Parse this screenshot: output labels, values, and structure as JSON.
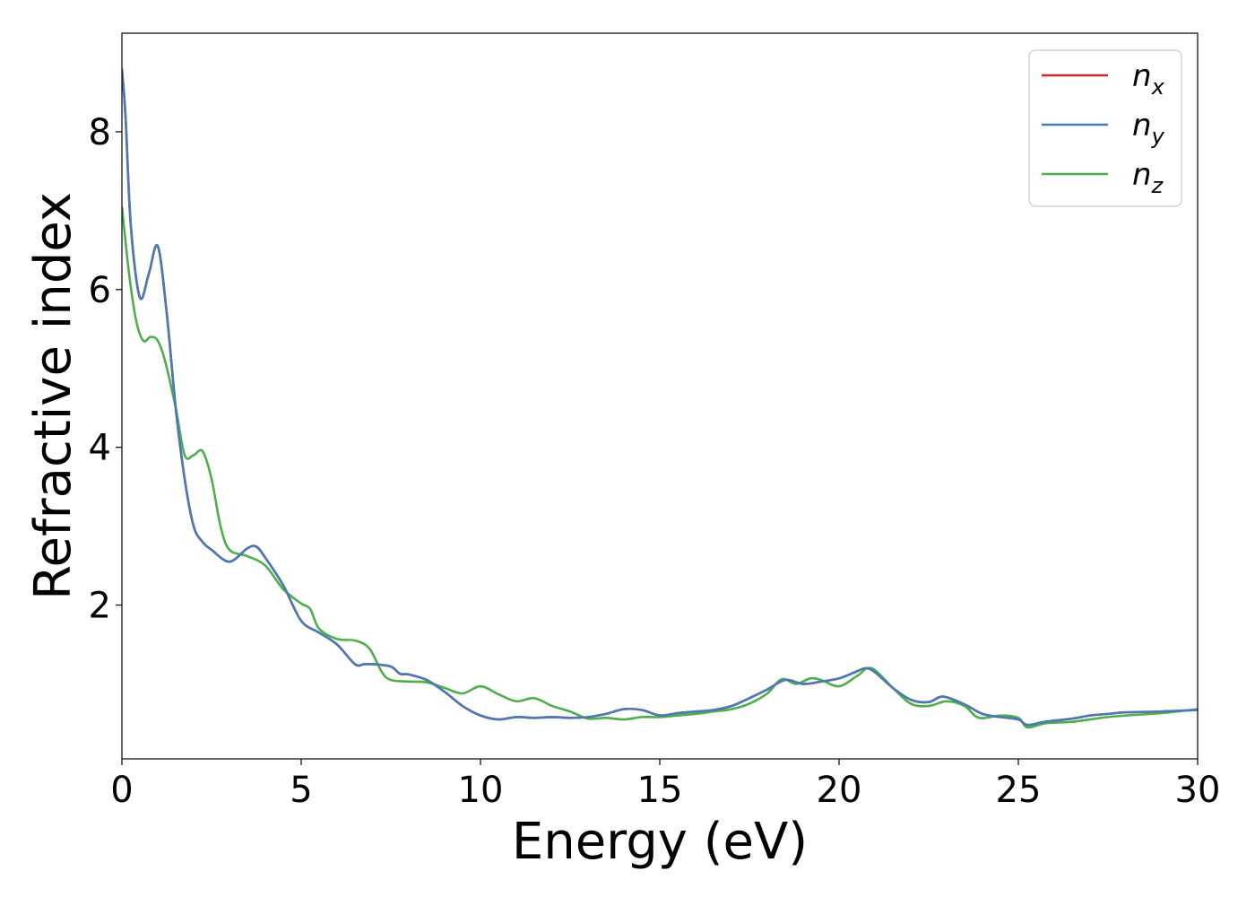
{
  "chart_data": {
    "type": "line",
    "title": "",
    "xlabel": "Energy (eV)",
    "ylabel": "Refractive index",
    "xlim": [
      0,
      30
    ],
    "ylim": [
      0.05,
      9.25
    ],
    "xticks": [
      "0",
      "5",
      "10",
      "15",
      "20",
      "25",
      "30"
    ],
    "yticks": [
      "2",
      "4",
      "6",
      "8"
    ],
    "grid": false,
    "legend_position": "top-right",
    "series": [
      {
        "name": "n_x",
        "legend_main": "n",
        "legend_sub": "x",
        "color": "#d62728",
        "x": [
          0,
          0.1,
          0.25,
          0.5,
          0.75,
          1.0,
          1.25,
          1.5,
          1.75,
          2.0,
          2.25,
          2.5,
          3.0,
          3.5,
          3.75,
          4.0,
          4.5,
          5.0,
          5.5,
          6.0,
          6.5,
          6.75,
          7.0,
          7.5,
          7.75,
          8.0,
          8.5,
          9.0,
          9.5,
          10.0,
          10.5,
          11.0,
          11.5,
          12.0,
          12.5,
          13.0,
          13.5,
          14.0,
          14.5,
          15.0,
          15.5,
          16.0,
          16.5,
          17.0,
          17.5,
          18.0,
          18.5,
          19.0,
          19.5,
          20.0,
          20.5,
          20.75,
          21.0,
          21.5,
          22.0,
          22.5,
          22.9,
          23.5,
          24.0,
          24.5,
          25.0,
          25.25,
          25.75,
          26.5,
          27.0,
          27.5,
          28.0,
          29.0,
          30.0
        ],
        "y": [
          8.8,
          8.2,
          6.8,
          5.9,
          6.2,
          6.55,
          5.7,
          4.5,
          3.6,
          3.0,
          2.8,
          2.7,
          2.55,
          2.72,
          2.74,
          2.6,
          2.25,
          1.8,
          1.65,
          1.5,
          1.25,
          1.25,
          1.25,
          1.22,
          1.13,
          1.12,
          1.05,
          0.9,
          0.72,
          0.6,
          0.55,
          0.58,
          0.57,
          0.58,
          0.57,
          0.58,
          0.62,
          0.68,
          0.67,
          0.6,
          0.63,
          0.65,
          0.67,
          0.72,
          0.82,
          0.93,
          1.05,
          1.0,
          1.03,
          1.07,
          1.16,
          1.2,
          1.15,
          0.95,
          0.8,
          0.77,
          0.84,
          0.74,
          0.62,
          0.58,
          0.55,
          0.48,
          0.52,
          0.56,
          0.6,
          0.62,
          0.64,
          0.65,
          0.67
        ]
      },
      {
        "name": "n_y",
        "legend_main": "n",
        "legend_sub": "y",
        "color": "#4a7ab5",
        "x": [
          0,
          0.1,
          0.25,
          0.5,
          0.75,
          1.0,
          1.25,
          1.5,
          1.75,
          2.0,
          2.25,
          2.5,
          3.0,
          3.5,
          3.75,
          4.0,
          4.5,
          5.0,
          5.5,
          6.0,
          6.5,
          6.75,
          7.0,
          7.5,
          7.75,
          8.0,
          8.5,
          9.0,
          9.5,
          10.0,
          10.5,
          11.0,
          11.5,
          12.0,
          12.5,
          13.0,
          13.5,
          14.0,
          14.5,
          15.0,
          15.5,
          16.0,
          16.5,
          17.0,
          17.5,
          18.0,
          18.5,
          19.0,
          19.5,
          20.0,
          20.5,
          20.75,
          21.0,
          21.5,
          22.0,
          22.5,
          22.9,
          23.5,
          24.0,
          24.5,
          25.0,
          25.25,
          25.75,
          26.5,
          27.0,
          27.5,
          28.0,
          29.0,
          30.0
        ],
        "y": [
          8.8,
          8.2,
          6.8,
          5.9,
          6.2,
          6.55,
          5.7,
          4.5,
          3.6,
          3.0,
          2.8,
          2.7,
          2.55,
          2.72,
          2.74,
          2.6,
          2.25,
          1.8,
          1.65,
          1.5,
          1.25,
          1.25,
          1.25,
          1.22,
          1.13,
          1.12,
          1.05,
          0.9,
          0.72,
          0.6,
          0.55,
          0.58,
          0.57,
          0.58,
          0.57,
          0.58,
          0.62,
          0.68,
          0.67,
          0.6,
          0.63,
          0.65,
          0.67,
          0.72,
          0.82,
          0.93,
          1.05,
          1.0,
          1.03,
          1.07,
          1.16,
          1.2,
          1.15,
          0.95,
          0.8,
          0.77,
          0.84,
          0.74,
          0.62,
          0.58,
          0.55,
          0.48,
          0.52,
          0.56,
          0.6,
          0.62,
          0.64,
          0.65,
          0.67
        ]
      },
      {
        "name": "n_z",
        "legend_main": "n",
        "legend_sub": "z",
        "color": "#4daf4a",
        "x": [
          0,
          0.2,
          0.4,
          0.6,
          0.8,
          1.0,
          1.2,
          1.5,
          1.75,
          2.0,
          2.25,
          2.5,
          2.75,
          3.0,
          3.5,
          4.0,
          4.5,
          5.0,
          5.25,
          5.5,
          6.0,
          6.5,
          6.9,
          7.25,
          7.5,
          8.0,
          8.5,
          9.0,
          9.5,
          10.0,
          10.5,
          11.0,
          11.5,
          12.0,
          12.5,
          13.0,
          13.5,
          14.0,
          14.5,
          15.0,
          15.5,
          16.0,
          16.5,
          17.0,
          17.5,
          18.0,
          18.4,
          18.8,
          19.2,
          19.5,
          20.0,
          20.5,
          20.9,
          21.5,
          22.0,
          22.5,
          23.0,
          23.5,
          23.9,
          24.5,
          25.0,
          25.25,
          25.75,
          26.5,
          27.0,
          27.5,
          28.0,
          29.0,
          30.0
        ],
        "y": [
          7.05,
          6.2,
          5.6,
          5.35,
          5.4,
          5.35,
          5.1,
          4.5,
          3.9,
          3.9,
          3.95,
          3.6,
          3.0,
          2.7,
          2.62,
          2.5,
          2.2,
          2.02,
          1.95,
          1.7,
          1.57,
          1.55,
          1.45,
          1.15,
          1.05,
          1.03,
          1.02,
          0.95,
          0.88,
          0.97,
          0.87,
          0.78,
          0.82,
          0.72,
          0.65,
          0.56,
          0.57,
          0.55,
          0.58,
          0.58,
          0.6,
          0.62,
          0.65,
          0.68,
          0.75,
          0.88,
          1.06,
          1.0,
          1.07,
          1.05,
          0.97,
          1.1,
          1.2,
          0.95,
          0.75,
          0.72,
          0.78,
          0.72,
          0.57,
          0.6,
          0.57,
          0.45,
          0.5,
          0.52,
          0.55,
          0.58,
          0.6,
          0.63,
          0.68
        ]
      }
    ]
  }
}
